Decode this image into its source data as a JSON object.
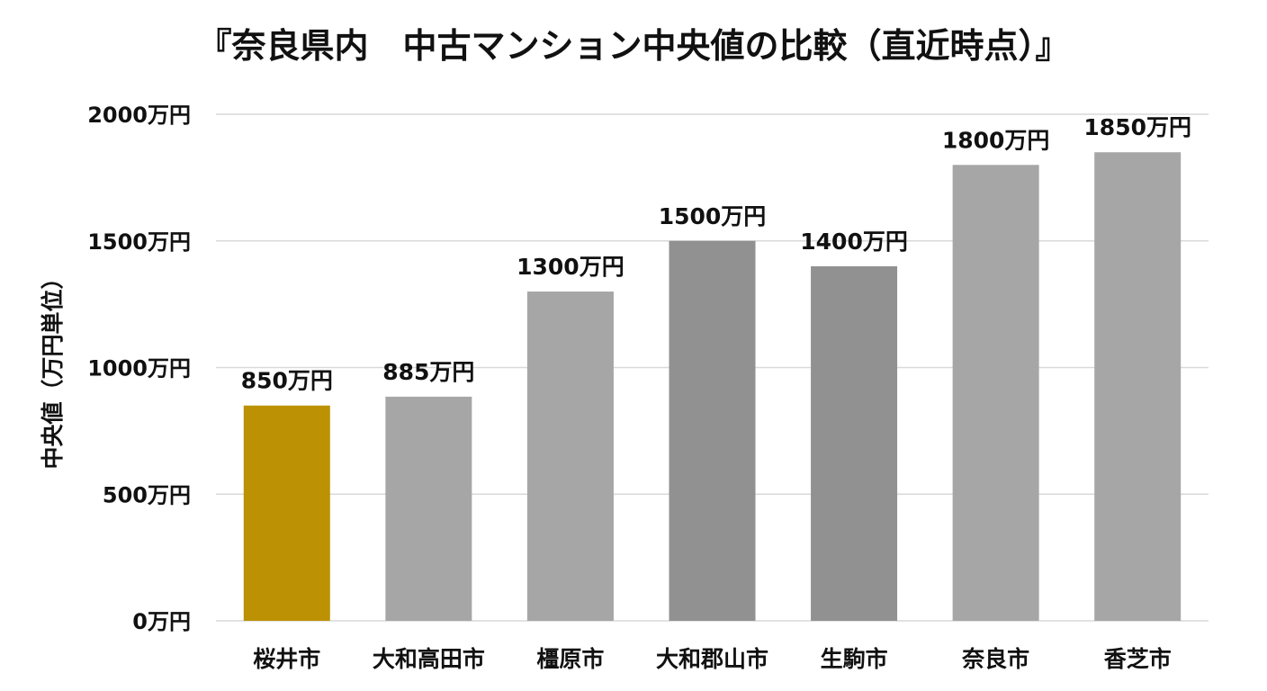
{
  "chart_data": {
    "type": "bar",
    "title": "『奈良県内　中古マンション中央値の比較（直近時点）』",
    "xlabel": "",
    "ylabel": "中央値（万円単位）",
    "ylim": [
      0,
      2000
    ],
    "yticks": [
      0,
      500,
      1000,
      1500,
      2000
    ],
    "ytick_labels": [
      "0万円",
      "500万円",
      "1000万円",
      "1500万円",
      "2000万円"
    ],
    "categories": [
      "桜井市",
      "大和高田市",
      "橿原市",
      "大和郡山市",
      "生駒市",
      "奈良市",
      "香芝市"
    ],
    "values": [
      850,
      885,
      1300,
      1500,
      1400,
      1800,
      1850
    ],
    "data_labels": [
      "850万円",
      "885万円",
      "1300万円",
      "1500万円",
      "1400万円",
      "1800万円",
      "1850万円"
    ],
    "bar_colors": [
      "#bc9103",
      "#a6a6a6",
      "#a6a6a6",
      "#919191",
      "#919191",
      "#a6a6a6",
      "#a6a6a6"
    ],
    "grid": true,
    "legend": "none"
  }
}
